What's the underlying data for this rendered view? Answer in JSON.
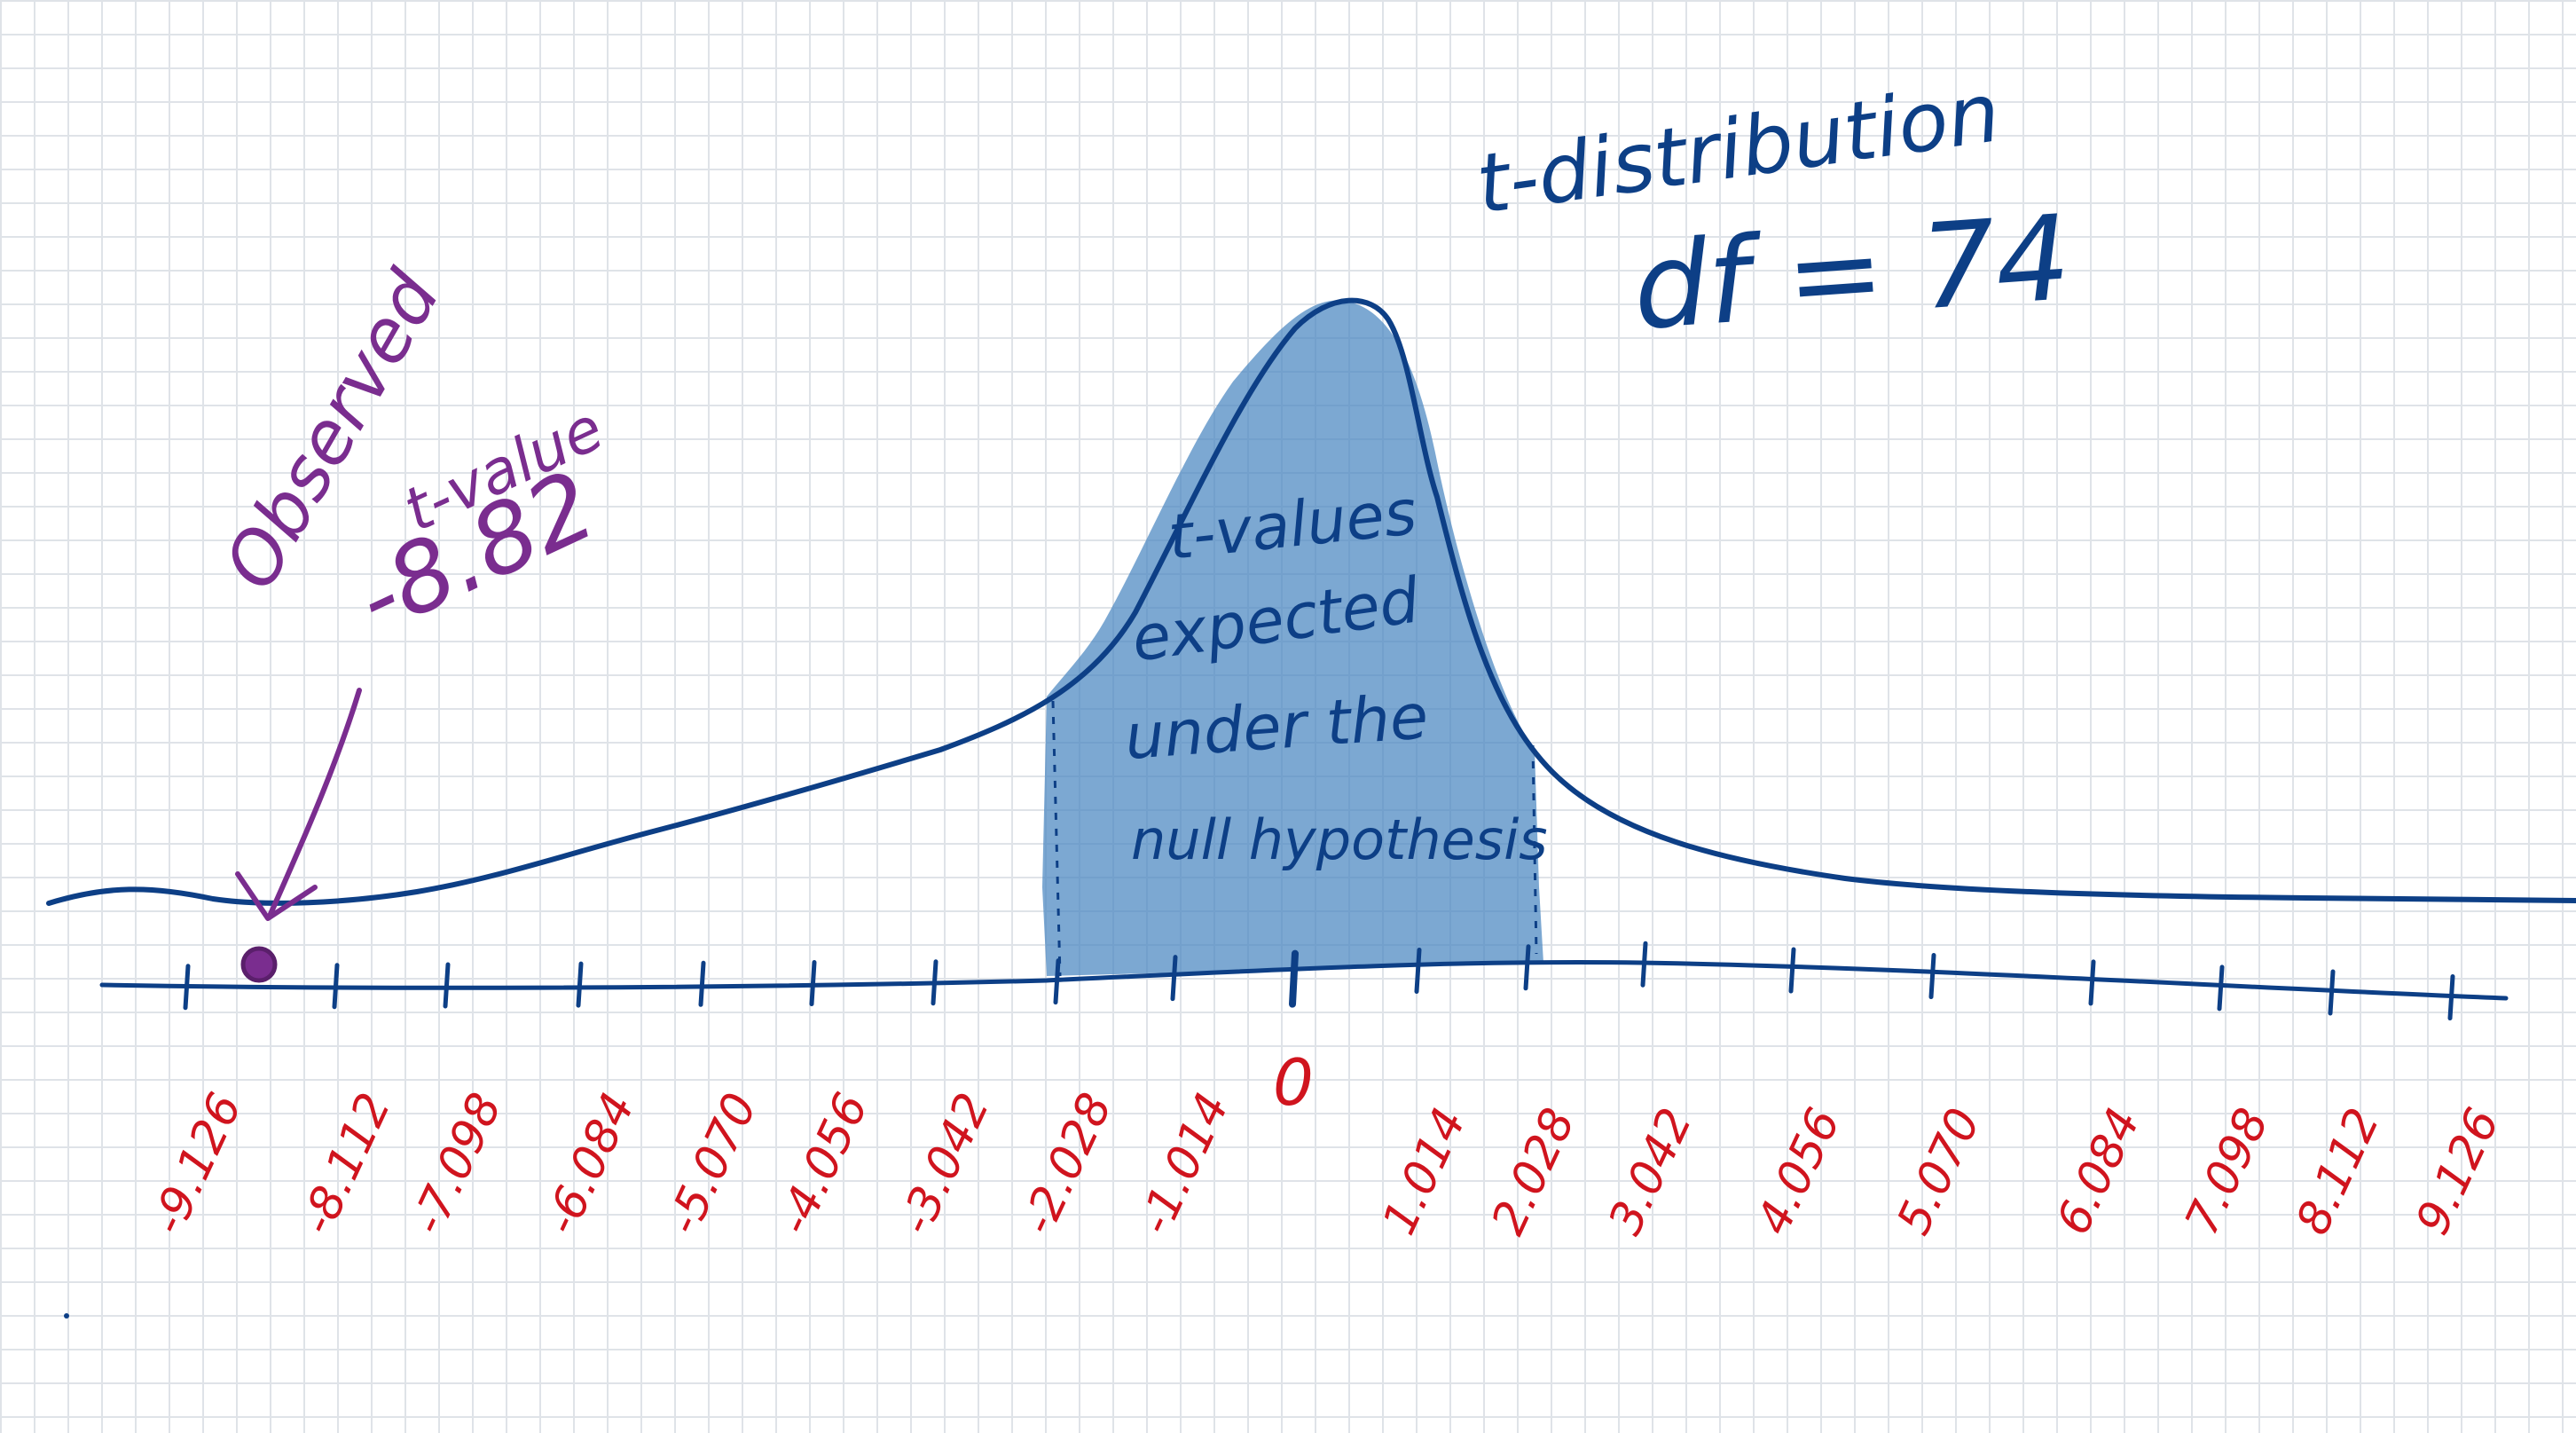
{
  "title_line1": "t-distribution",
  "title_line2": "df = 74",
  "observed_label_line1": "Observed",
  "observed_label_line2": "t-value",
  "observed_value": "-8.82",
  "region_text": [
    "t-values",
    "expected",
    "under the",
    "null hypothesis"
  ],
  "ticks": [
    "-9.126",
    "-8.112",
    "-7.098",
    "-6.084",
    "-5.070",
    "-4.056",
    "-3.042",
    "-2.028",
    "-1.014",
    "0",
    "1.014",
    "2.028",
    "3.042",
    "4.056",
    "5.070",
    "6.084",
    "7.098",
    "8.112",
    "9.126"
  ],
  "colors": {
    "curve": "#0d3f86",
    "fill": "#4a86c1",
    "tick_label": "#d0141e",
    "observed": "#7a2d8f",
    "grid": "#dfe3e8"
  }
}
